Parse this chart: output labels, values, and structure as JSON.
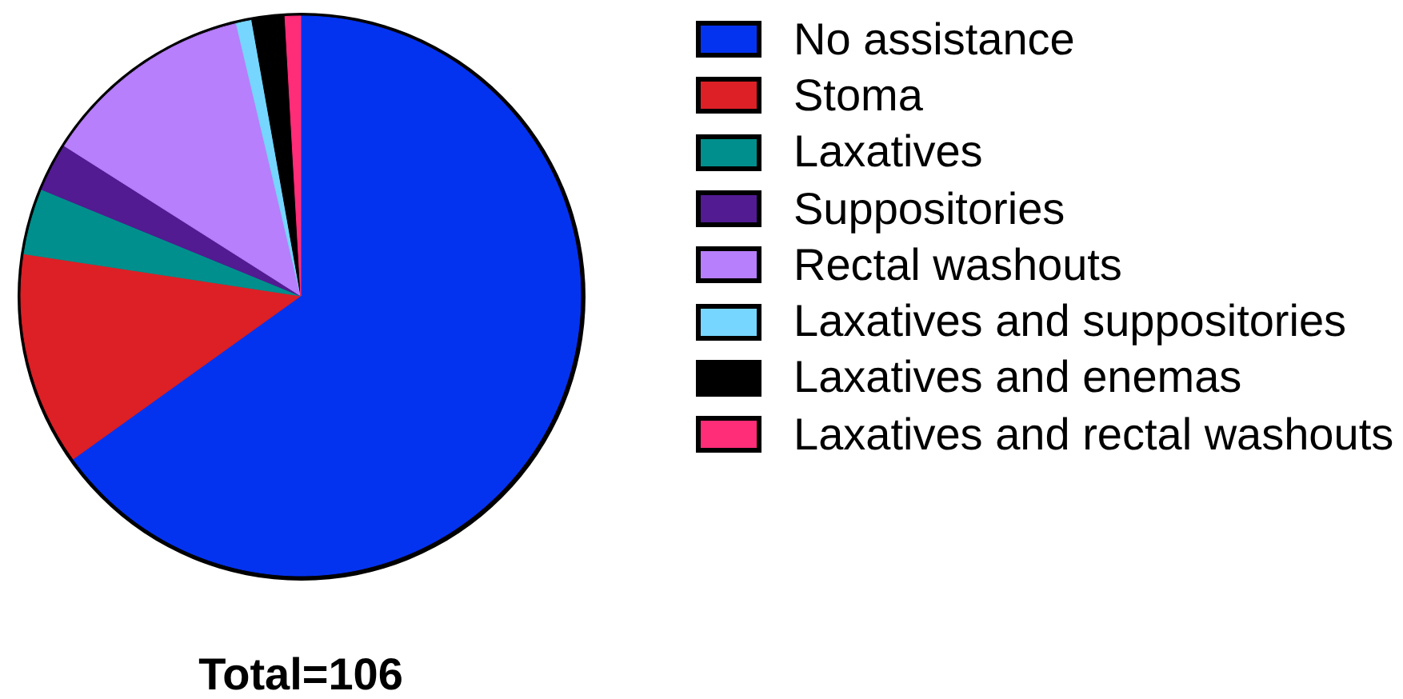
{
  "chart_data": {
    "type": "pie",
    "categories": [
      "No assistance",
      "Stoma",
      "Laxatives",
      "Suppositories",
      "Rectal washouts",
      "Laxatives and suppositories",
      "Laxatives and enemas",
      "Laxatives and rectal washouts"
    ],
    "values": [
      65.1,
      12.3,
      3.8,
      2.8,
      12.3,
      0.9,
      1.9,
      0.9
    ],
    "colors": [
      "#0433f0",
      "#dc2026",
      "#008f8c",
      "#521b92",
      "#b77ffc",
      "#76d6ff",
      "#000000",
      "#ff2d78"
    ],
    "legend": "right",
    "annotations": [
      "Total=106"
    ]
  }
}
